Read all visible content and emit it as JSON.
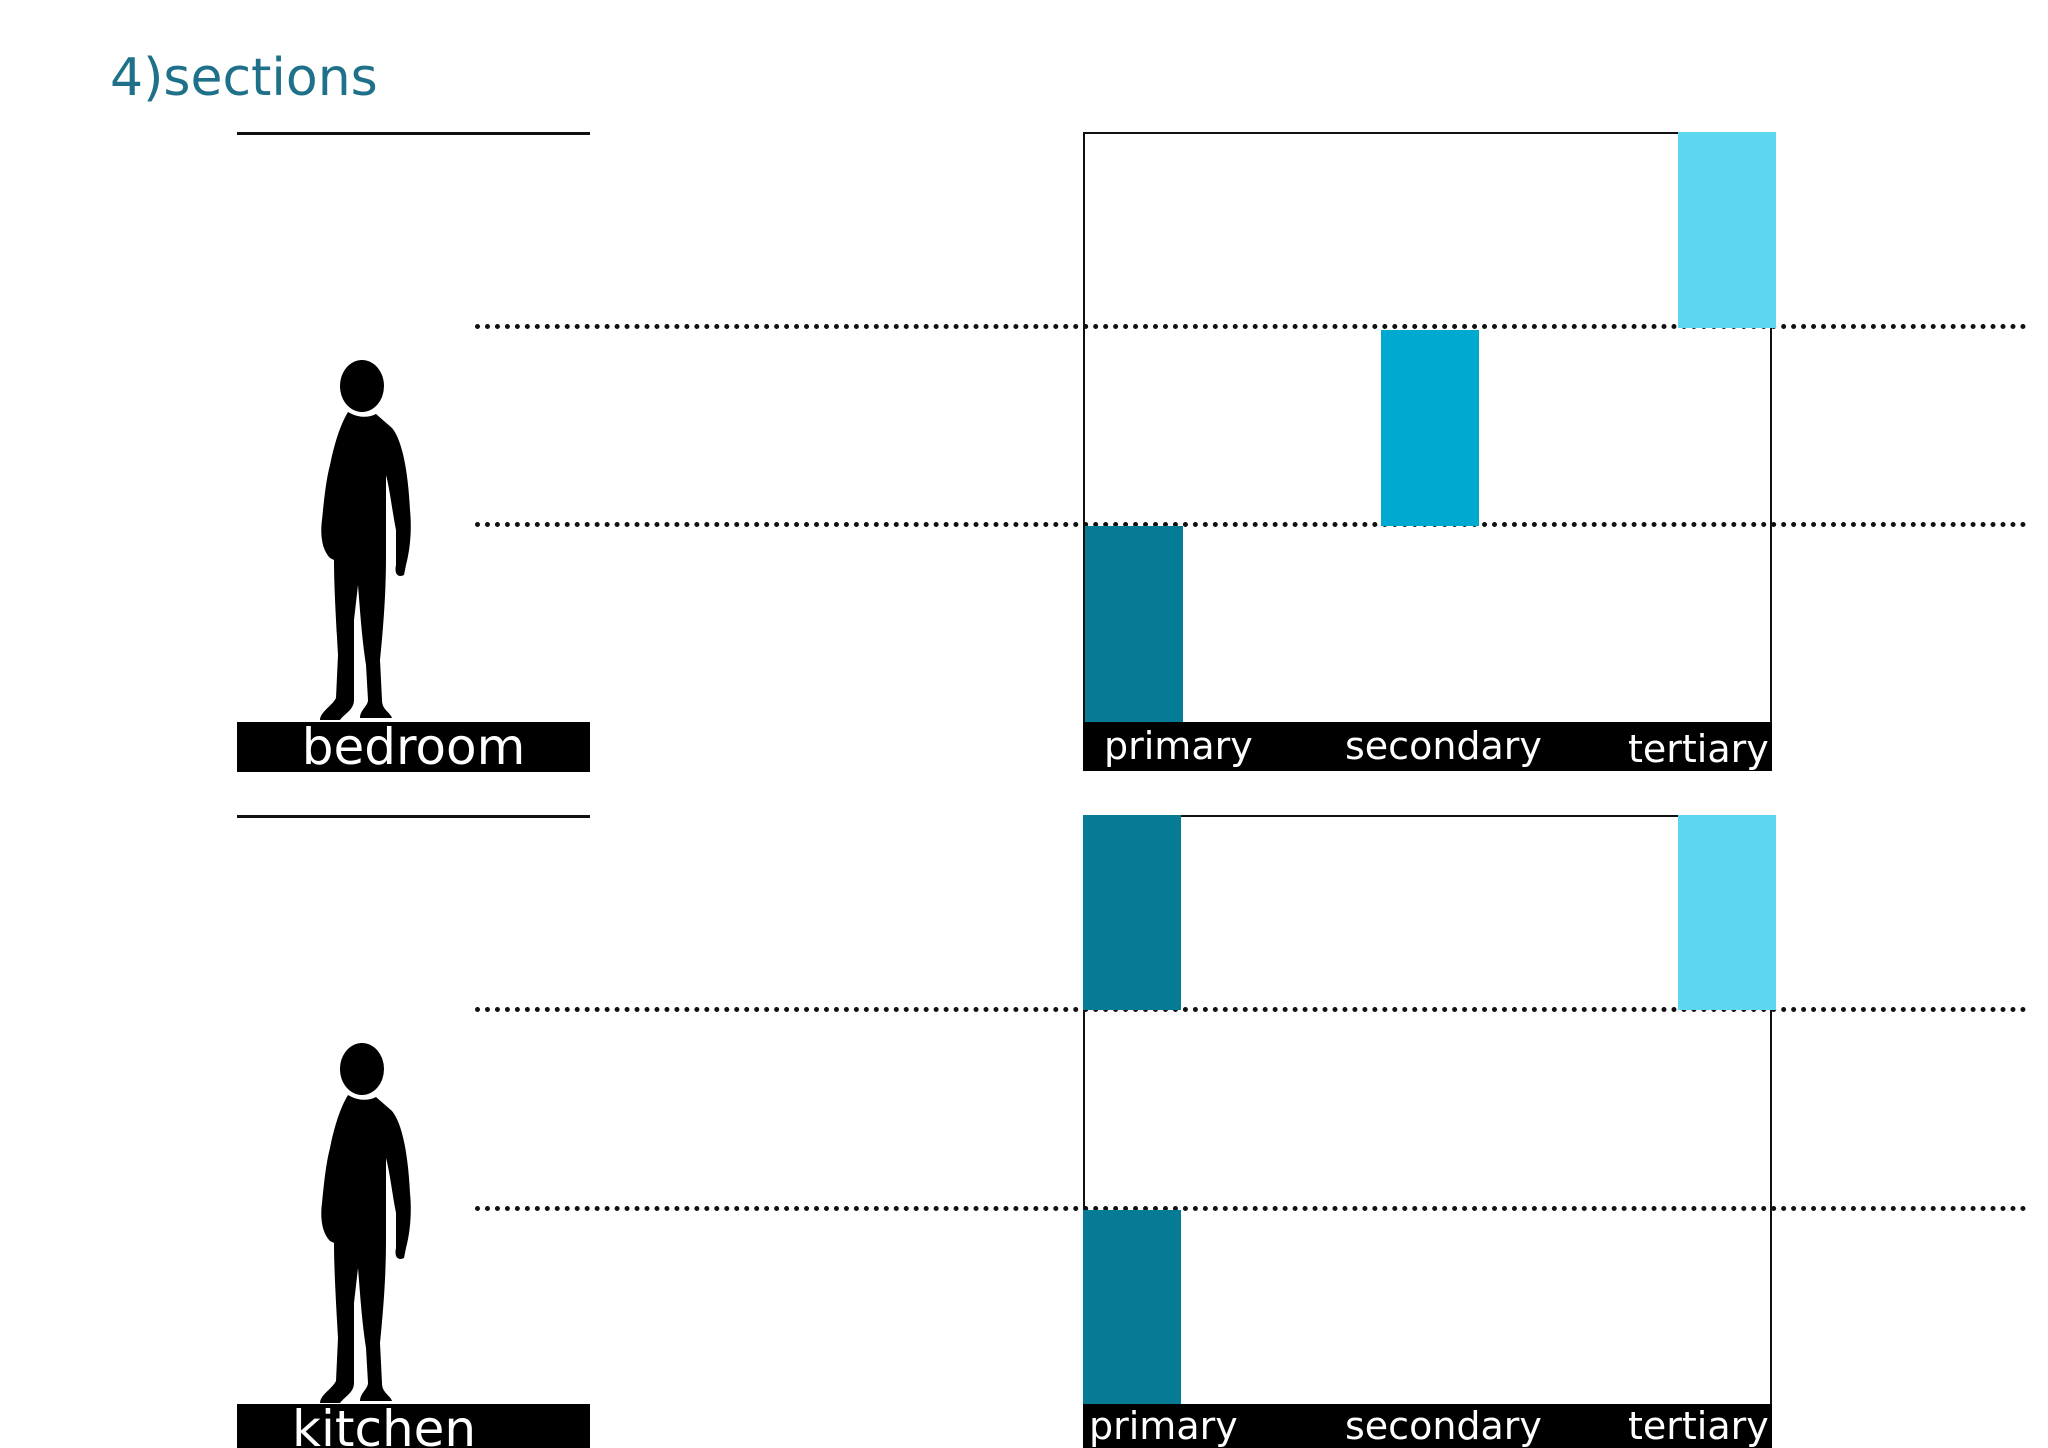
{
  "title": "4)sections",
  "colors": {
    "title": "#1f7189",
    "primary": "#057b96",
    "secondary": "#00a9cf",
    "tertiary": "#5dd6f2",
    "label_bg": "#000000",
    "label_text": "#ffffff"
  },
  "sections": [
    {
      "room": "bedroom",
      "icon": "person-silhouette-icon",
      "zones": [
        "primary",
        "secondary",
        "tertiary"
      ],
      "levels": {
        "primary": "low",
        "secondary": "middle",
        "tertiary": "high"
      }
    },
    {
      "room": "kitchen",
      "icon": "person-silhouette-icon",
      "zones": [
        "primary",
        "secondary",
        "tertiary"
      ],
      "levels": {
        "primary": [
          "low",
          "high"
        ],
        "tertiary": "high"
      }
    }
  ]
}
